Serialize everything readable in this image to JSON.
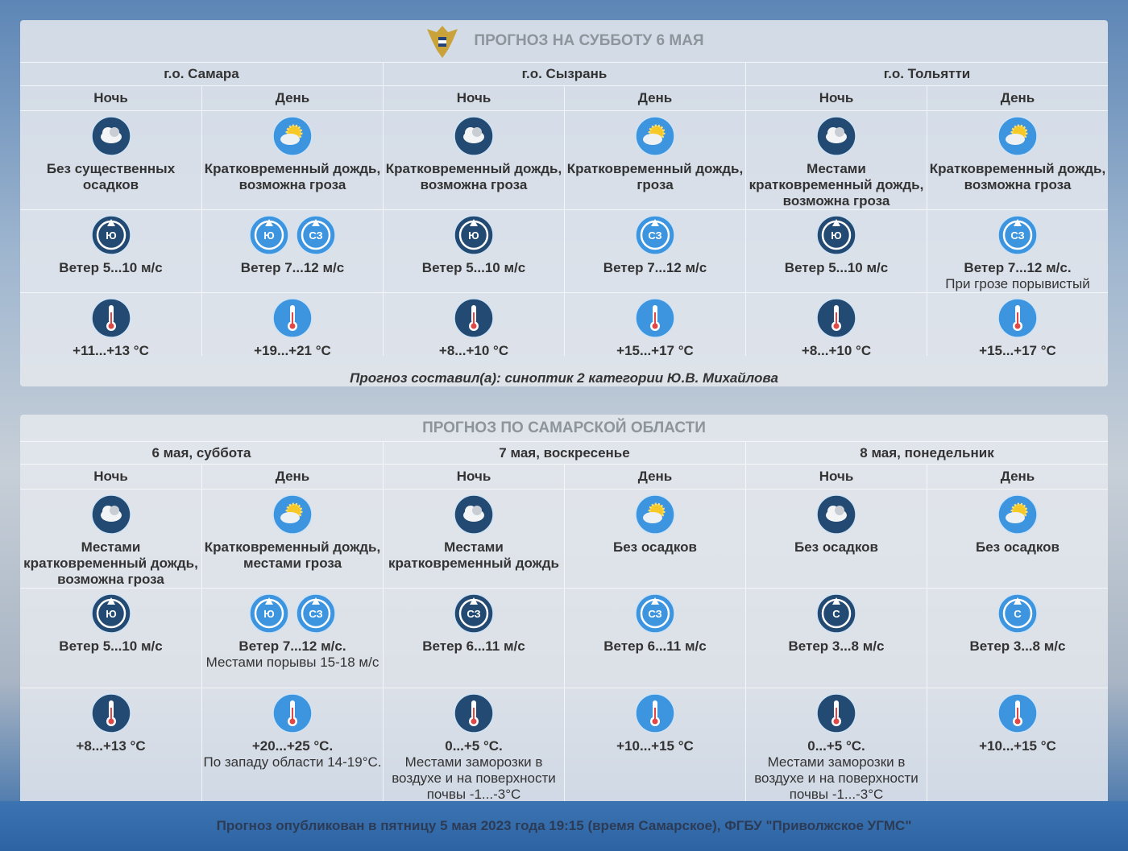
{
  "panels": [
    {
      "title": "ПРОГНОЗ НА СУББОТУ 6 МАЯ",
      "groups": [
        {
          "label": "г.о. Самара",
          "periods": [
            {
              "label": "Ночь",
              "weather": "Без существенных осадков",
              "wind_dirs": [
                "Ю"
              ],
              "wind": "Ветер 5...10 м/с",
              "temp": "+11...+13 °C"
            },
            {
              "label": "День",
              "weather": "Кратковременный дождь, возможна гроза",
              "wind_dirs": [
                "Ю",
                "СЗ"
              ],
              "wind": "Ветер 7...12 м/с",
              "temp": "+19...+21 °C"
            }
          ]
        },
        {
          "label": "г.о. Сызрань",
          "periods": [
            {
              "label": "Ночь",
              "weather": "Кратковременный дождь, возможна гроза",
              "wind_dirs": [
                "Ю"
              ],
              "wind": "Ветер 5...10 м/с",
              "temp": "+8...+10 °C"
            },
            {
              "label": "День",
              "weather": "Кратковременный дождь, гроза",
              "wind_dirs": [
                "СЗ"
              ],
              "wind": "Ветер 7...12 м/с",
              "temp": "+15...+17 °C"
            }
          ]
        },
        {
          "label": "г.о. Тольятти",
          "periods": [
            {
              "label": "Ночь",
              "weather": "Местами кратковременный дождь, возможна гроза",
              "wind_dirs": [
                "Ю"
              ],
              "wind": "Ветер 5...10 м/с",
              "temp": "+8...+10 °C"
            },
            {
              "label": "День",
              "weather": "Кратковременный дождь, возможна гроза",
              "wind_dirs": [
                "СЗ"
              ],
              "wind": "Ветер 7...12 м/с.",
              "wind_note": "При грозе порывистый",
              "temp": "+15...+17 °C"
            }
          ]
        }
      ],
      "author": "Прогноз составил(а): синоптик 2 категории Ю.В. Михайлова"
    },
    {
      "title": "ПРОГНОЗ ПО САМАРСКОЙ ОБЛАСТИ",
      "groups": [
        {
          "label": "6 мая, суббота",
          "periods": [
            {
              "label": "Ночь",
              "weather": "Местами кратковременный дождь, возможна гроза",
              "wind_dirs": [
                "Ю"
              ],
              "wind": "Ветер 5...10 м/с",
              "temp": "+8...+13 °C"
            },
            {
              "label": "День",
              "weather": "Кратковременный дождь, местами гроза",
              "wind_dirs": [
                "Ю",
                "СЗ"
              ],
              "wind": "Ветер 7...12 м/с.",
              "wind_note": "Местами порывы 15-18 м/с",
              "temp": "+20...+25 °C.",
              "temp_note": "По западу области 14-19°С."
            }
          ]
        },
        {
          "label": "7 мая, воскресенье",
          "periods": [
            {
              "label": "Ночь",
              "weather": "Местами кратковременный дождь",
              "wind_dirs": [
                "СЗ"
              ],
              "wind": "Ветер 6...11 м/с",
              "temp": "0...+5 °C.",
              "temp_note": "Местами заморозки в воздухе и на поверхности почвы -1...-3°С"
            },
            {
              "label": "День",
              "weather": "Без осадков",
              "wind_dirs": [
                "СЗ"
              ],
              "wind": "Ветер 6...11 м/с",
              "temp": "+10...+15 °C"
            }
          ]
        },
        {
          "label": "8 мая, понедельник",
          "periods": [
            {
              "label": "Ночь",
              "weather": "Без осадков",
              "wind_dirs": [
                "С"
              ],
              "wind": "Ветер 3...8 м/с",
              "temp": "0...+5 °C.",
              "temp_note": "Местами заморозки в воздухе и на поверхности почвы -1...-3°С"
            },
            {
              "label": "День",
              "weather": "Без осадков",
              "wind_dirs": [
                "С"
              ],
              "wind": "Ветер 3...8 м/с",
              "temp": "+10...+15 °C"
            }
          ]
        }
      ]
    }
  ],
  "footer": "Прогноз опубликован в пятницу 5 мая 2023 года 19:15 (время Самарское), ФГБУ \"Приволжское УГМС\""
}
